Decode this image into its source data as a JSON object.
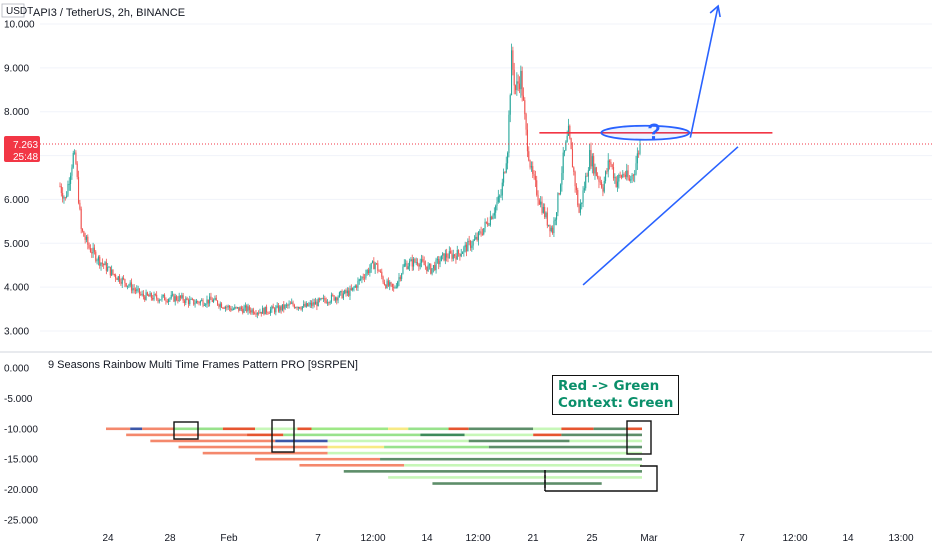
{
  "header": {
    "title": "API3 / TetherUS, 2h, BINANCE",
    "currency": "USDT"
  },
  "price_tag": {
    "price": "7.263",
    "countdown": "25:48",
    "color": "#f23645"
  },
  "indicator": {
    "title": "9 Seasons Rainbow Multi Time Frames Pattern PRO [9SRPEN]"
  },
  "annotation": {
    "line1": "Red -> Green",
    "line2": "Context: Green",
    "color": "#0a8f6a"
  },
  "price_axis_labels": [
    "10.000",
    "9.000",
    "8.000",
    "7.000",
    "6.000",
    "5.000",
    "4.000",
    "3.000"
  ],
  "indicator_axis_labels": [
    "0.000",
    "-5.000",
    "-10.000",
    "-15.000",
    "-20.000",
    "-25.000"
  ],
  "time_axis_labels": [
    "24",
    "28",
    "Feb",
    "7",
    "12:00",
    "14",
    "12:00",
    "21",
    "25",
    "Mar",
    "7",
    "12:00",
    "14",
    "13:00"
  ],
  "colors": {
    "candle_up": "#26a69a",
    "candle_down": "#ef5350",
    "trendline": "#2962ff",
    "resistance": "#f23645",
    "annotation_text": "#0a8f6a"
  },
  "chart_data": [
    {
      "type": "candlestick",
      "title": "API3 / TetherUS, 2h, BINANCE",
      "ylabel": "USDT",
      "ylim": [
        2.7,
        10.2
      ],
      "x_ticks": [
        "24",
        "28",
        "Feb",
        "7",
        "12:00",
        "14",
        "12:00",
        "21",
        "25",
        "Mar",
        "7",
        "12:00",
        "14",
        "13:00"
      ],
      "last_price": 7.263,
      "close_path": [
        [
          0,
          6.3
        ],
        [
          4,
          6.0
        ],
        [
          10,
          7.0
        ],
        [
          12,
          6.8
        ],
        [
          16,
          5.3
        ],
        [
          22,
          4.9
        ],
        [
          30,
          4.6
        ],
        [
          40,
          4.3
        ],
        [
          50,
          4.1
        ],
        [
          62,
          3.8
        ],
        [
          75,
          3.75
        ],
        [
          90,
          3.75
        ],
        [
          100,
          3.65
        ],
        [
          115,
          3.7
        ],
        [
          130,
          3.5
        ],
        [
          140,
          3.5
        ],
        [
          150,
          3.45
        ],
        [
          165,
          3.5
        ],
        [
          175,
          3.6
        ],
        [
          185,
          3.55
        ],
        [
          195,
          3.65
        ],
        [
          210,
          3.8
        ],
        [
          220,
          3.9
        ],
        [
          230,
          4.3
        ],
        [
          238,
          4.55
        ],
        [
          245,
          4.1
        ],
        [
          252,
          3.95
        ],
        [
          260,
          4.5
        ],
        [
          270,
          4.6
        ],
        [
          280,
          4.4
        ],
        [
          290,
          4.7
        ],
        [
          300,
          4.75
        ],
        [
          315,
          5.1
        ],
        [
          325,
          5.6
        ],
        [
          333,
          6.1
        ],
        [
          338,
          7.2
        ],
        [
          341,
          9.2
        ],
        [
          344,
          8.5
        ],
        [
          348,
          8.8
        ],
        [
          352,
          7.5
        ],
        [
          356,
          6.6
        ],
        [
          362,
          6.0
        ],
        [
          368,
          5.5
        ],
        [
          372,
          5.3
        ],
        [
          376,
          6.0
        ],
        [
          380,
          6.9
        ],
        [
          384,
          7.5
        ],
        [
          388,
          6.6
        ],
        [
          392,
          5.7
        ],
        [
          396,
          6.3
        ],
        [
          400,
          7.0
        ],
        [
          405,
          6.6
        ],
        [
          410,
          6.3
        ],
        [
          415,
          6.9
        ],
        [
          420,
          6.4
        ],
        [
          426,
          6.6
        ],
        [
          430,
          6.4
        ],
        [
          434,
          6.7
        ],
        [
          438,
          7.263
        ]
      ],
      "trendline_support": [
        [
          395,
          4.05
        ],
        [
          512,
          7.2
        ]
      ],
      "resistance_level": {
        "x": [
          362,
          538
        ],
        "y": 7.52
      },
      "projection": [
        [
          476,
          7.5
        ],
        [
          497,
          10.4
        ]
      ]
    },
    {
      "type": "bar",
      "title": "9 Seasons Rainbow Multi Time Frames Pattern PRO [9SRPEN]",
      "ylim": [
        -25,
        0
      ],
      "y_ticks": [
        0,
        -5,
        -10,
        -15,
        -20,
        -25
      ],
      "rows": [
        {
          "y": -10.0,
          "segments": [
            [
              0,
              12,
              "#f4886c"
            ],
            [
              12,
              18,
              "#3c57a8"
            ],
            [
              18,
              34,
              "#f4886c"
            ],
            [
              34,
              58,
              "#98e28c"
            ],
            [
              58,
              74,
              "#e6552f"
            ],
            [
              74,
              95,
              "#c7f7b8"
            ],
            [
              95,
              102,
              "#e6552f"
            ],
            [
              102,
              140,
              "#9ee887"
            ],
            [
              140,
              150,
              "#f7ea84"
            ],
            [
              150,
              170,
              "#98e28c"
            ],
            [
              170,
              180,
              "#e6552f"
            ],
            [
              180,
              212,
              "#5d8e69"
            ],
            [
              212,
              226,
              "#c7f7b8"
            ],
            [
              226,
              242,
              "#e6552f"
            ],
            [
              242,
              258,
              "#5d8e69"
            ],
            [
              258,
              266,
              "#e6552f"
            ]
          ]
        },
        {
          "y": -11.0,
          "segments": [
            [
              10,
              70,
              "#f4886c"
            ],
            [
              70,
              88,
              "#e6552f"
            ],
            [
              88,
              156,
              "#98e28c"
            ],
            [
              156,
              178,
              "#3c8a5a"
            ],
            [
              178,
              212,
              "#c7f7b8"
            ],
            [
              212,
              226,
              "#e6552f"
            ],
            [
              226,
              266,
              "#5d8e69"
            ]
          ]
        },
        {
          "y": -12.0,
          "segments": [
            [
              22,
              84,
              "#f4886c"
            ],
            [
              84,
              110,
              "#3c57a8"
            ],
            [
              110,
              180,
              "#c7f7b8"
            ],
            [
              180,
              230,
              "#5d8e69"
            ],
            [
              230,
              266,
              "#c7f7b8"
            ]
          ]
        },
        {
          "y": -13.0,
          "segments": [
            [
              36,
              110,
              "#f4886c"
            ],
            [
              110,
              138,
              "#f7ea84"
            ],
            [
              138,
              190,
              "#98e28c"
            ],
            [
              190,
              266,
              "#5d8e69"
            ]
          ]
        },
        {
          "y": -14.0,
          "segments": [
            [
              48,
              110,
              "#f4886c"
            ],
            [
              110,
              266,
              "#c7f7b8"
            ]
          ]
        },
        {
          "y": -15.0,
          "segments": [
            [
              74,
              136,
              "#f4886c"
            ],
            [
              136,
              266,
              "#5d8e69"
            ]
          ]
        },
        {
          "y": -16.0,
          "segments": [
            [
              96,
              148,
              "#f4886c"
            ],
            [
              148,
              266,
              "#c7f7b8"
            ]
          ]
        },
        {
          "y": -17.0,
          "segments": [
            [
              118,
              266,
              "#5d8e69"
            ]
          ]
        },
        {
          "y": -18.0,
          "segments": [
            [
              140,
              266,
              "#c7f7b8"
            ]
          ]
        },
        {
          "y": -19.0,
          "segments": [
            [
              162,
              246,
              "#5d8e69"
            ]
          ]
        }
      ]
    }
  ]
}
